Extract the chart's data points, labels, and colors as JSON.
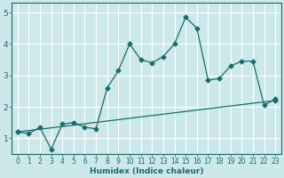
{
  "title": "",
  "xlabel": "Humidex (Indice chaleur)",
  "ylabel": "",
  "background_color": "#cce8ea",
  "grid_color": "#ffffff",
  "line_color": "#1a6b6b",
  "xlim": [
    -0.5,
    23.5
  ],
  "ylim": [
    0.5,
    5.3
  ],
  "x_ticks": [
    0,
    1,
    2,
    3,
    4,
    5,
    6,
    7,
    8,
    9,
    10,
    11,
    12,
    13,
    14,
    15,
    16,
    17,
    18,
    19,
    20,
    21,
    22,
    23
  ],
  "y_ticks": [
    1,
    2,
    3,
    4,
    5
  ],
  "series1_x": [
    0,
    1,
    2,
    3,
    4,
    5,
    6,
    7,
    8,
    9,
    10,
    11,
    12,
    13,
    14,
    15,
    16,
    17,
    18,
    19,
    20,
    21,
    22,
    23
  ],
  "series1_y": [
    1.2,
    1.15,
    1.35,
    0.65,
    1.45,
    1.5,
    1.35,
    1.3,
    2.6,
    3.15,
    4.0,
    3.5,
    3.4,
    3.6,
    4.0,
    4.85,
    4.5,
    2.85,
    2.9,
    3.3,
    3.45,
    3.45,
    2.05,
    2.25
  ],
  "series2_x": [
    0,
    23
  ],
  "series2_y": [
    1.2,
    2.2
  ],
  "tick_fontsize": 5.5,
  "xlabel_fontsize": 6.5,
  "marker_size": 2.5
}
